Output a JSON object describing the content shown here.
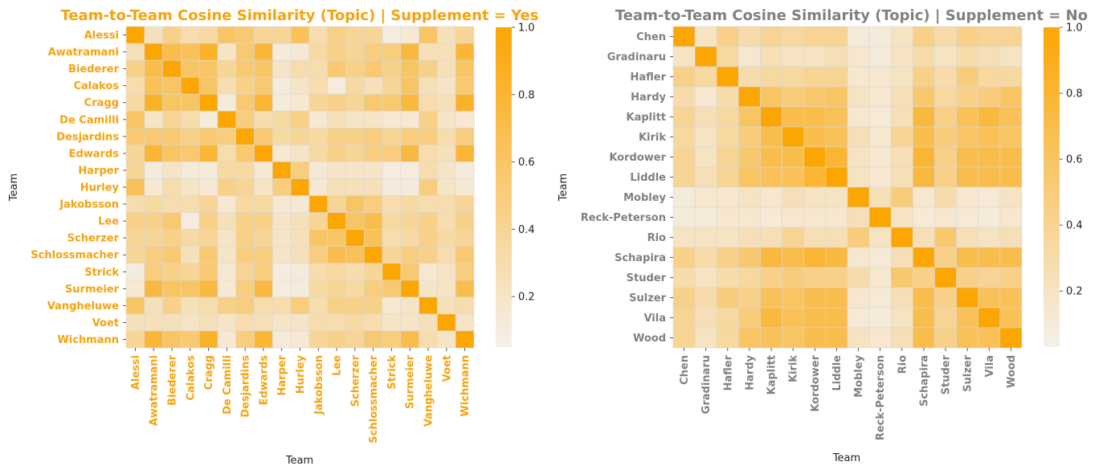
{
  "chart_data": [
    {
      "type": "heatmap",
      "title": "Team-to-Team Cosine Similarity (Topic) | Supplement = Yes",
      "title_color": "#F5A30F",
      "xlabel": "Team",
      "ylabel": "Team",
      "tick_label_color": "#F5A30F",
      "color_range": [
        0.05,
        1.0
      ],
      "colorbar_ticks": [
        "0.2",
        "0.4",
        "0.6",
        "0.8",
        "1.0"
      ],
      "colorbar_tick_values": [
        0.2,
        0.4,
        0.6,
        0.8,
        1.0
      ],
      "colormap": [
        "#F5F0EB",
        "#FBA603"
      ],
      "labels": [
        "Alessi",
        "Awatramani",
        "Biederer",
        "Calakos",
        "Cragg",
        "De Camilli",
        "Desjardins",
        "Edwards",
        "Harper",
        "Hurley",
        "Jakobsson",
        "Lee",
        "Scherzer",
        "Schlossmacher",
        "Strick",
        "Surmeier",
        "Vangheluwe",
        "Voet",
        "Wichmann"
      ],
      "matrix": [
        [
          1.0,
          0.25,
          0.45,
          0.3,
          0.35,
          0.6,
          0.55,
          0.4,
          0.4,
          0.65,
          0.3,
          0.45,
          0.4,
          0.4,
          0.1,
          0.15,
          0.6,
          0.25,
          0.4
        ],
        [
          0.25,
          1.0,
          0.7,
          0.65,
          0.85,
          0.2,
          0.55,
          0.8,
          0.12,
          0.15,
          0.35,
          0.45,
          0.4,
          0.5,
          0.5,
          0.75,
          0.25,
          0.25,
          0.8
        ],
        [
          0.45,
          0.7,
          1.0,
          0.6,
          0.6,
          0.4,
          0.55,
          0.6,
          0.2,
          0.3,
          0.3,
          0.55,
          0.45,
          0.55,
          0.45,
          0.6,
          0.45,
          0.25,
          0.6
        ],
        [
          0.3,
          0.65,
          0.6,
          1.0,
          0.6,
          0.3,
          0.45,
          0.55,
          0.12,
          0.2,
          0.3,
          0.1,
          0.35,
          0.25,
          0.4,
          0.6,
          0.25,
          0.2,
          0.55
        ],
        [
          0.35,
          0.85,
          0.6,
          0.6,
          1.0,
          0.12,
          0.55,
          0.8,
          0.12,
          0.15,
          0.4,
          0.45,
          0.4,
          0.55,
          0.55,
          0.75,
          0.3,
          0.25,
          0.85
        ],
        [
          0.6,
          0.2,
          0.4,
          0.3,
          0.12,
          1.0,
          0.5,
          0.3,
          0.35,
          0.45,
          0.15,
          0.25,
          0.2,
          0.2,
          0.15,
          0.15,
          0.45,
          0.2,
          0.15
        ],
        [
          0.55,
          0.55,
          0.55,
          0.45,
          0.55,
          0.5,
          1.0,
          0.55,
          0.35,
          0.4,
          0.35,
          0.45,
          0.45,
          0.5,
          0.4,
          0.5,
          0.5,
          0.3,
          0.5
        ],
        [
          0.4,
          0.8,
          0.6,
          0.55,
          0.8,
          0.3,
          0.55,
          1.0,
          0.15,
          0.2,
          0.35,
          0.45,
          0.4,
          0.5,
          0.5,
          0.75,
          0.3,
          0.25,
          0.8
        ],
        [
          0.4,
          0.12,
          0.2,
          0.12,
          0.12,
          0.35,
          0.35,
          0.15,
          1.0,
          0.5,
          0.15,
          0.2,
          0.2,
          0.2,
          0.1,
          0.1,
          0.3,
          0.2,
          0.12
        ],
        [
          0.65,
          0.15,
          0.3,
          0.2,
          0.15,
          0.45,
          0.4,
          0.2,
          0.5,
          1.0,
          0.15,
          0.25,
          0.25,
          0.25,
          0.12,
          0.12,
          0.5,
          0.2,
          0.15
        ],
        [
          0.3,
          0.35,
          0.3,
          0.3,
          0.4,
          0.15,
          0.35,
          0.35,
          0.15,
          0.15,
          1.0,
          0.4,
          0.6,
          0.5,
          0.3,
          0.35,
          0.3,
          0.3,
          0.4
        ],
        [
          0.45,
          0.45,
          0.55,
          0.1,
          0.45,
          0.25,
          0.45,
          0.45,
          0.2,
          0.25,
          0.4,
          1.0,
          0.6,
          0.7,
          0.35,
          0.4,
          0.45,
          0.3,
          0.45
        ],
        [
          0.4,
          0.4,
          0.45,
          0.35,
          0.4,
          0.2,
          0.45,
          0.4,
          0.2,
          0.25,
          0.6,
          0.6,
          1.0,
          0.65,
          0.3,
          0.35,
          0.45,
          0.35,
          0.4
        ],
        [
          0.4,
          0.5,
          0.55,
          0.25,
          0.55,
          0.2,
          0.5,
          0.5,
          0.2,
          0.25,
          0.5,
          0.7,
          0.65,
          1.0,
          0.4,
          0.5,
          0.45,
          0.3,
          0.55
        ],
        [
          0.1,
          0.5,
          0.45,
          0.4,
          0.55,
          0.15,
          0.4,
          0.5,
          0.1,
          0.12,
          0.3,
          0.35,
          0.3,
          0.4,
          1.0,
          0.55,
          0.15,
          0.2,
          0.5
        ],
        [
          0.15,
          0.75,
          0.6,
          0.6,
          0.75,
          0.15,
          0.5,
          0.75,
          0.1,
          0.12,
          0.35,
          0.4,
          0.35,
          0.5,
          0.55,
          1.0,
          0.2,
          0.2,
          0.7
        ],
        [
          0.6,
          0.25,
          0.45,
          0.25,
          0.3,
          0.45,
          0.5,
          0.3,
          0.3,
          0.5,
          0.3,
          0.45,
          0.45,
          0.45,
          0.15,
          0.2,
          1.0,
          0.25,
          0.3
        ],
        [
          0.25,
          0.25,
          0.25,
          0.2,
          0.25,
          0.2,
          0.3,
          0.25,
          0.2,
          0.2,
          0.3,
          0.3,
          0.35,
          0.3,
          0.2,
          0.2,
          0.25,
          1.0,
          0.2
        ],
        [
          0.4,
          0.8,
          0.6,
          0.55,
          0.85,
          0.15,
          0.5,
          0.8,
          0.12,
          0.15,
          0.4,
          0.45,
          0.4,
          0.55,
          0.5,
          0.7,
          0.3,
          0.2,
          1.0
        ]
      ]
    },
    {
      "type": "heatmap",
      "title": "Team-to-Team Cosine Similarity (Topic) | Supplement = No",
      "title_color": "#808080",
      "xlabel": "Team",
      "ylabel": "Team",
      "tick_label_color": "#808080",
      "color_range": [
        0.03,
        1.0
      ],
      "colorbar_ticks": [
        "0.2",
        "0.4",
        "0.6",
        "0.8",
        "1.0"
      ],
      "colorbar_tick_values": [
        0.2,
        0.4,
        0.6,
        0.8,
        1.0
      ],
      "colormap": [
        "#F5F0EB",
        "#FBA603"
      ],
      "labels": [
        "Chen",
        "Gradinaru",
        "Hafler",
        "Hardy",
        "Kaplitt",
        "Kirik",
        "Kordower",
        "Liddle",
        "Mobley",
        "Reck-Peterson",
        "Rio",
        "Schapira",
        "Studer",
        "Sulzer",
        "Vila",
        "Wood"
      ],
      "matrix": [
        [
          1.0,
          0.2,
          0.45,
          0.3,
          0.4,
          0.35,
          0.4,
          0.4,
          0.1,
          0.1,
          0.2,
          0.45,
          0.3,
          0.45,
          0.4,
          0.4
        ],
        [
          0.2,
          1.0,
          0.35,
          0.15,
          0.25,
          0.2,
          0.2,
          0.25,
          0.15,
          0.1,
          0.2,
          0.3,
          0.2,
          0.3,
          0.25,
          0.2
        ],
        [
          0.45,
          0.35,
          1.0,
          0.3,
          0.35,
          0.35,
          0.4,
          0.4,
          0.15,
          0.15,
          0.2,
          0.45,
          0.3,
          0.5,
          0.35,
          0.35
        ],
        [
          0.3,
          0.15,
          0.3,
          1.0,
          0.6,
          0.5,
          0.55,
          0.6,
          0.2,
          0.15,
          0.25,
          0.55,
          0.35,
          0.45,
          0.5,
          0.6
        ],
        [
          0.4,
          0.25,
          0.35,
          0.6,
          1.0,
          0.7,
          0.7,
          0.65,
          0.15,
          0.12,
          0.25,
          0.75,
          0.45,
          0.65,
          0.75,
          0.65
        ],
        [
          0.35,
          0.2,
          0.35,
          0.5,
          0.7,
          1.0,
          0.7,
          0.65,
          0.25,
          0.15,
          0.4,
          0.7,
          0.5,
          0.6,
          0.65,
          0.6
        ],
        [
          0.4,
          0.2,
          0.4,
          0.55,
          0.7,
          0.7,
          1.0,
          0.8,
          0.2,
          0.15,
          0.25,
          0.8,
          0.45,
          0.7,
          0.7,
          0.7
        ],
        [
          0.4,
          0.25,
          0.4,
          0.6,
          0.65,
          0.65,
          0.8,
          1.0,
          0.2,
          0.15,
          0.25,
          0.75,
          0.45,
          0.7,
          0.7,
          0.7
        ],
        [
          0.1,
          0.15,
          0.15,
          0.2,
          0.15,
          0.25,
          0.2,
          0.2,
          1.0,
          0.25,
          0.5,
          0.15,
          0.3,
          0.15,
          0.12,
          0.2
        ],
        [
          0.1,
          0.1,
          0.15,
          0.15,
          0.12,
          0.15,
          0.15,
          0.15,
          0.25,
          1.0,
          0.2,
          0.12,
          0.15,
          0.12,
          0.1,
          0.15
        ],
        [
          0.2,
          0.2,
          0.2,
          0.25,
          0.25,
          0.4,
          0.25,
          0.25,
          0.5,
          0.2,
          1.0,
          0.25,
          0.55,
          0.25,
          0.2,
          0.25
        ],
        [
          0.45,
          0.3,
          0.45,
          0.55,
          0.75,
          0.7,
          0.8,
          0.75,
          0.15,
          0.12,
          0.25,
          1.0,
          0.45,
          0.7,
          0.7,
          0.7
        ],
        [
          0.3,
          0.2,
          0.3,
          0.35,
          0.45,
          0.5,
          0.45,
          0.45,
          0.3,
          0.15,
          0.55,
          0.45,
          1.0,
          0.45,
          0.4,
          0.45
        ],
        [
          0.45,
          0.3,
          0.5,
          0.45,
          0.65,
          0.6,
          0.7,
          0.7,
          0.15,
          0.12,
          0.25,
          0.7,
          0.45,
          1.0,
          0.65,
          0.65
        ],
        [
          0.4,
          0.25,
          0.35,
          0.5,
          0.75,
          0.65,
          0.7,
          0.7,
          0.12,
          0.1,
          0.2,
          0.7,
          0.4,
          0.65,
          1.0,
          0.65
        ],
        [
          0.4,
          0.2,
          0.35,
          0.6,
          0.65,
          0.6,
          0.7,
          0.7,
          0.2,
          0.15,
          0.25,
          0.7,
          0.45,
          0.65,
          0.65,
          1.0
        ]
      ]
    }
  ]
}
